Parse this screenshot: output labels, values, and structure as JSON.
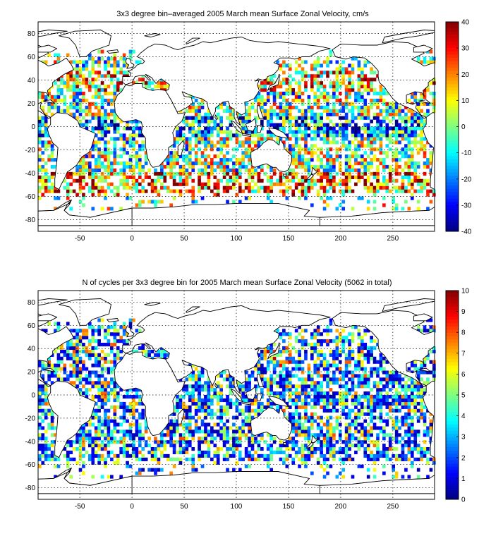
{
  "colors": {
    "jet": [
      "#00008f",
      "#0000ff",
      "#0080ff",
      "#00ffff",
      "#80ff80",
      "#ffff00",
      "#ff8000",
      "#ff0000",
      "#800000"
    ],
    "land_outline": "#000000",
    "background": "#ffffff"
  },
  "panels": [
    {
      "title": "3x3 degree bin–averaged 2005 March mean Surface Zonal Velocity, cm/s",
      "colorbar": {
        "min": -40,
        "max": 40,
        "ticks": [
          "40",
          "30",
          "20",
          "10",
          "0",
          "-10",
          "-20",
          "-30",
          "-40"
        ]
      },
      "variable": "zonal_velocity"
    },
    {
      "title": "N of cycles per 3x3 degree bin for 2005 March mean Surface Zonal Velocity (5062 in total)",
      "colorbar": {
        "min": 0,
        "max": 10,
        "ticks": [
          "10",
          "9",
          "8",
          "7",
          "6",
          "5",
          "4",
          "3",
          "2",
          "1",
          "0"
        ]
      },
      "variable": "cycle_count"
    }
  ],
  "chart_data": [
    {
      "type": "heatmap",
      "title": "3x3 degree bin–averaged 2005 March mean Surface Zonal Velocity, cm/s",
      "x_ticks": [
        "-50",
        "0",
        "50",
        "100",
        "150",
        "200",
        "250"
      ],
      "y_ticks": [
        "80",
        "60",
        "40",
        "20",
        "0",
        "-20",
        "-40",
        "-60",
        "-80"
      ],
      "xlim": [
        -90,
        290
      ],
      "ylim": [
        -90,
        90
      ],
      "bin_size_deg": 3,
      "colorbar_range": [
        -40,
        40
      ],
      "grid": true
    },
    {
      "type": "heatmap",
      "title": "N of cycles per 3x3 degree bin for 2005 March mean Surface Zonal Velocity (5062 in total)",
      "x_ticks": [
        "-50",
        "0",
        "50",
        "100",
        "150",
        "200",
        "250"
      ],
      "y_ticks": [
        "80",
        "60",
        "40",
        "20",
        "0",
        "-20",
        "-40",
        "-60",
        "-80"
      ],
      "xlim": [
        -90,
        290
      ],
      "ylim": [
        -90,
        90
      ],
      "bin_size_deg": 3,
      "colorbar_range": [
        0,
        10
      ],
      "total_cycles": 5062,
      "grid": true
    }
  ]
}
